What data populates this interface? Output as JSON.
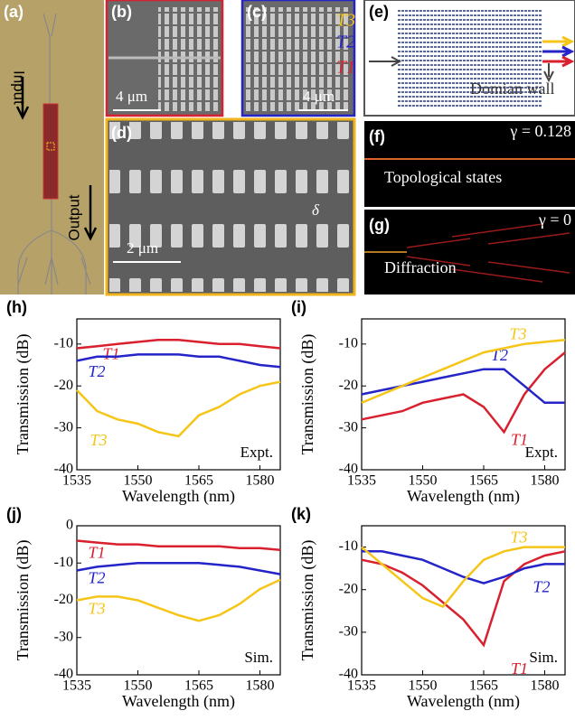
{
  "figure": {
    "panels": [
      "(a)",
      "(b)",
      "(c)",
      "(d)",
      "(e)",
      "(f)",
      "(g)"
    ],
    "a": {
      "input": "Input",
      "output": "Output"
    },
    "b": {
      "scale": "4 μm"
    },
    "c": {
      "labels": [
        "T3",
        "T2",
        "T1"
      ],
      "scale": "4 μm"
    },
    "d": {
      "scale": "2 μm",
      "delta": "δ"
    },
    "e": {
      "wall": "Domian wall"
    },
    "f": {
      "gamma": "γ = 0.128",
      "caption": "Topological states"
    },
    "g": {
      "gamma": "γ = 0",
      "caption": "Diffraction"
    }
  },
  "chart_data": [
    {
      "type": "line",
      "panel": "(h)",
      "note": "Expt.",
      "xlabel": "Wavelength (nm)",
      "ylabel": "Transmission (dB)",
      "x": [
        1535,
        1540,
        1545,
        1550,
        1555,
        1560,
        1565,
        1570,
        1575,
        1580,
        1585
      ],
      "xlim": [
        1535,
        1585
      ],
      "xticks": [
        1535,
        1550,
        1565,
        1580
      ],
      "ylim": [
        -40,
        -4
      ],
      "yticks": [
        -40,
        -30,
        -20,
        -10
      ],
      "series": [
        {
          "name": "T1",
          "color": "#d9202e",
          "values": [
            -11,
            -10.5,
            -10,
            -9.5,
            -9,
            -9,
            -9.5,
            -10,
            -10,
            -10.5,
            -11
          ]
        },
        {
          "name": "T2",
          "color": "#2424c8",
          "values": [
            -14,
            -13,
            -13,
            -12.5,
            -12.5,
            -12.5,
            -13,
            -13,
            -14,
            -15,
            -15.5
          ]
        },
        {
          "name": "T3",
          "color": "#f5c518",
          "values": [
            -21,
            -26,
            -28,
            -29,
            -31,
            -32,
            -27,
            -25,
            -22,
            -20,
            -19
          ]
        }
      ]
    },
    {
      "type": "line",
      "panel": "(i)",
      "note": "Expt.",
      "xlabel": "Wavelength (nm)",
      "ylabel": "Transmission (dB)",
      "x": [
        1535,
        1540,
        1545,
        1550,
        1555,
        1560,
        1565,
        1570,
        1575,
        1580,
        1585
      ],
      "xlim": [
        1535,
        1585
      ],
      "xticks": [
        1535,
        1550,
        1565,
        1580
      ],
      "ylim": [
        -40,
        -4
      ],
      "yticks": [
        -40,
        -30,
        -20,
        -10
      ],
      "series": [
        {
          "name": "T1",
          "color": "#d9202e",
          "values": [
            -28,
            -27,
            -26,
            -24,
            -23,
            -22,
            -25,
            -31,
            -22,
            -16,
            -12
          ]
        },
        {
          "name": "T2",
          "color": "#2424c8",
          "values": [
            -22,
            -21,
            -20,
            -19,
            -18,
            -17,
            -16,
            -16,
            -20,
            -24,
            -24
          ]
        },
        {
          "name": "T3",
          "color": "#f5c518",
          "values": [
            -24,
            -22,
            -20,
            -18,
            -16,
            -14,
            -12,
            -11,
            -10,
            -9.5,
            -9
          ]
        }
      ]
    },
    {
      "type": "line",
      "panel": "(j)",
      "note": "Sim.",
      "xlabel": "Wavelength (nm)",
      "ylabel": "Transmission (dB)",
      "x": [
        1535,
        1540,
        1545,
        1550,
        1555,
        1560,
        1565,
        1570,
        1575,
        1580,
        1585
      ],
      "xlim": [
        1535,
        1585
      ],
      "xticks": [
        1535,
        1550,
        1565,
        1580
      ],
      "ylim": [
        -40,
        0
      ],
      "yticks": [
        -40,
        -30,
        -20,
        -10,
        0
      ],
      "series": [
        {
          "name": "T1",
          "color": "#d9202e",
          "values": [
            -4,
            -4.5,
            -5,
            -5,
            -5.5,
            -5.5,
            -5.5,
            -5.5,
            -6,
            -6,
            -6.5
          ]
        },
        {
          "name": "T2",
          "color": "#2424c8",
          "values": [
            -12,
            -11,
            -10.5,
            -10,
            -10,
            -10,
            -10,
            -10.5,
            -11,
            -12,
            -13
          ]
        },
        {
          "name": "T3",
          "color": "#f5c518",
          "values": [
            -20,
            -19,
            -19,
            -20,
            -22,
            -24,
            -25.5,
            -24,
            -21,
            -17,
            -14.5
          ]
        }
      ]
    },
    {
      "type": "line",
      "panel": "(k)",
      "note": "Sim.",
      "xlabel": "Wavelength (nm)",
      "ylabel": "Transmission (dB)",
      "x": [
        1535,
        1540,
        1545,
        1550,
        1555,
        1560,
        1565,
        1570,
        1575,
        1580,
        1585
      ],
      "xlim": [
        1535,
        1585
      ],
      "xticks": [
        1535,
        1550,
        1565,
        1580
      ],
      "ylim": [
        -40,
        -5
      ],
      "yticks": [
        -40,
        -30,
        -20,
        -10
      ],
      "series": [
        {
          "name": "T1",
          "color": "#d9202e",
          "values": [
            -13,
            -14,
            -16,
            -19,
            -23,
            -27,
            -33,
            -18,
            -14,
            -12,
            -11
          ]
        },
        {
          "name": "T2",
          "color": "#2424c8",
          "values": [
            -11,
            -11,
            -12,
            -13,
            -15,
            -17,
            -18.5,
            -17,
            -15,
            -14,
            -14
          ]
        },
        {
          "name": "T3",
          "color": "#f5c518",
          "values": [
            -10,
            -14,
            -18,
            -22,
            -24,
            -18,
            -13,
            -11,
            -10,
            -10,
            -10
          ]
        }
      ]
    }
  ]
}
